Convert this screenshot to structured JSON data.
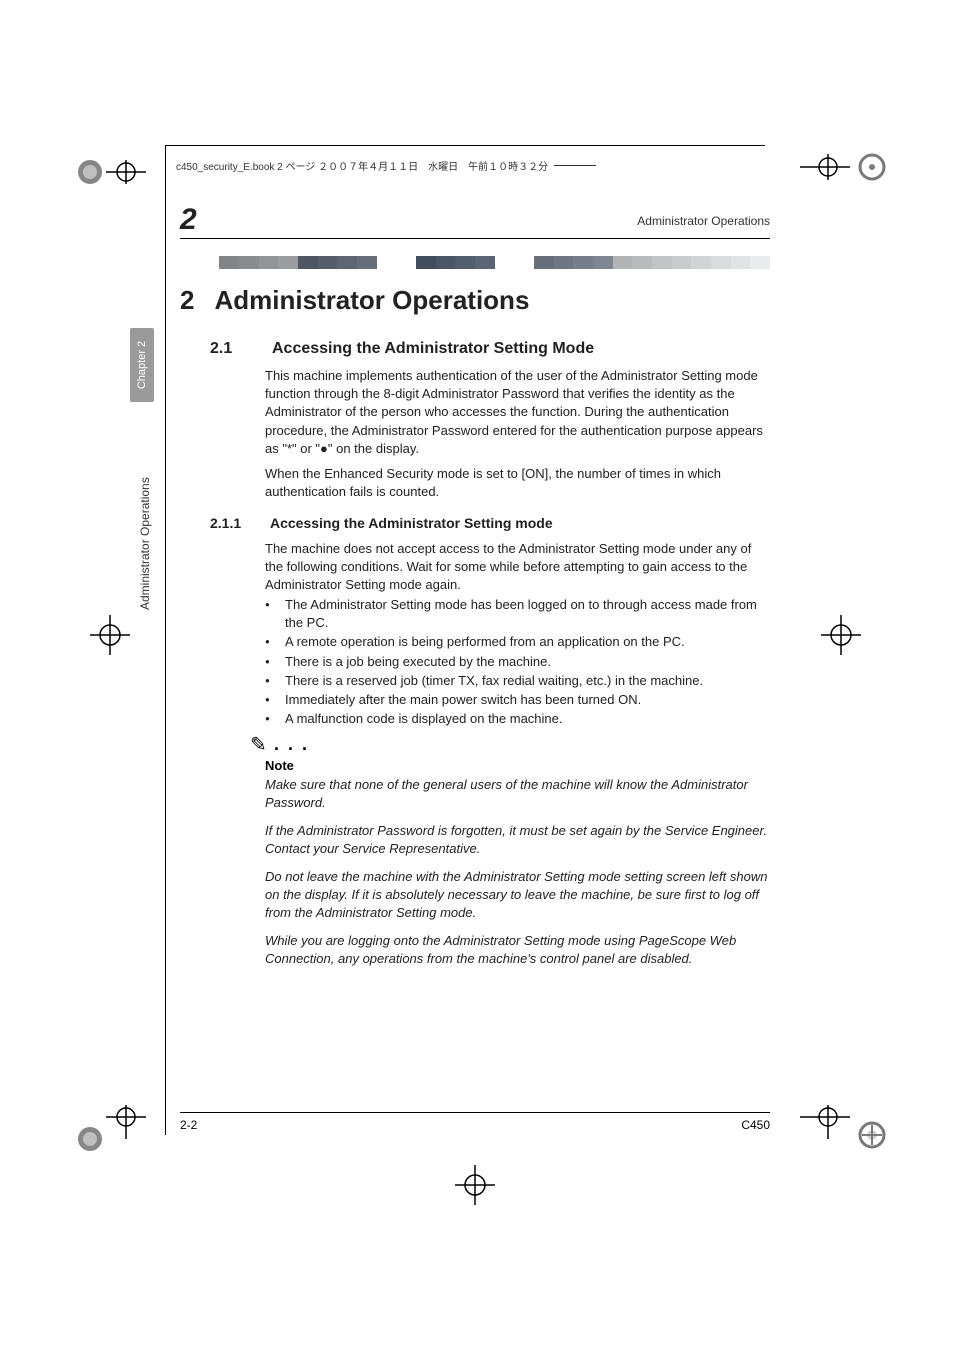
{
  "breadcrumb": "c450_security_E.book  2 ページ  ２００７年４月１１日　水曜日　午前１０時３２分",
  "running_header": "Administrator Operations",
  "chapter_number_top": "2",
  "gradient_colors": [
    "#ffffff",
    "#ffffff",
    "#828487",
    "#8a8c8f",
    "#929497",
    "#9a9c9f",
    "#4e5761",
    "#565f69",
    "#5e6771",
    "#666f79",
    "#ffffff",
    "#ffffff",
    "#424e5d",
    "#4a5665",
    "#525e6d",
    "#5a6675",
    "#ffffff",
    "#ffffff",
    "#666f79",
    "#6e7781",
    "#767f89",
    "#7e8791",
    "#b2b3b5",
    "#babbbd",
    "#c2c3c5",
    "#cacbcd",
    "#d2d3d5",
    "#dadbdd",
    "#e2e3e5",
    "#eaebec"
  ],
  "title": {
    "num": "2",
    "text": "Administrator Operations"
  },
  "section_21": {
    "num": "2.1",
    "text": "Accessing the Administrator Setting Mode"
  },
  "para_21a": "This machine implements authentication of the user of the Administrator Setting mode function through the 8-digit Administrator Password that verifies the identity as the Administrator of the person who accesses the function. During the authentication procedure, the Administrator Password entered for the authentication purpose appears as \"*\" or \"●\" on the display.",
  "para_21b": "When the Enhanced Security mode is set to [ON], the number of times in which authentication fails is counted.",
  "subsection_211": {
    "num": "2.1.1",
    "text": "Accessing the Administrator Setting mode"
  },
  "para_211": "The machine does not accept access to the Administrator Setting mode under any of the following conditions. Wait for some while before attempting to gain access to the Administrator Setting mode again.",
  "bullets": [
    "The Administrator Setting mode has been logged on to through access made from the PC.",
    "A remote operation is being performed from an application on the PC.",
    "There is a job being executed by the machine.",
    "There is a reserved job (timer TX, fax redial waiting, etc.) in the machine.",
    "Immediately after the main power switch has been turned ON.",
    "A malfunction code is displayed on the machine."
  ],
  "note_label": "Note",
  "note_paras": [
    "Make sure that none of the general users of the machine will know the Administrator Password.",
    "If the Administrator Password is forgotten, it must be set again by the Service Engineer. Contact your Service Representative.",
    "Do not leave the machine with the Administrator Setting mode setting screen left shown on the display. If it is absolutely necessary to leave the machine, be sure first to log off from the Administrator Setting mode.",
    "While you are logging onto the Administrator Setting mode using PageScope Web Connection, any operations from the machine's control panel are disabled."
  ],
  "side_tab": "Chapter 2",
  "side_label": "Administrator Operations",
  "footer": {
    "left": "2-2",
    "right": "C450"
  },
  "colors": {
    "text": "#222222",
    "side_tab_bg": "#9a9a9a",
    "side_tab_fg": "#ffffff",
    "rule": "#000000"
  },
  "fonts": {
    "body_size_pt": 10,
    "title_size_pt": 20,
    "section_size_pt": 12,
    "subsection_size_pt": 11
  }
}
